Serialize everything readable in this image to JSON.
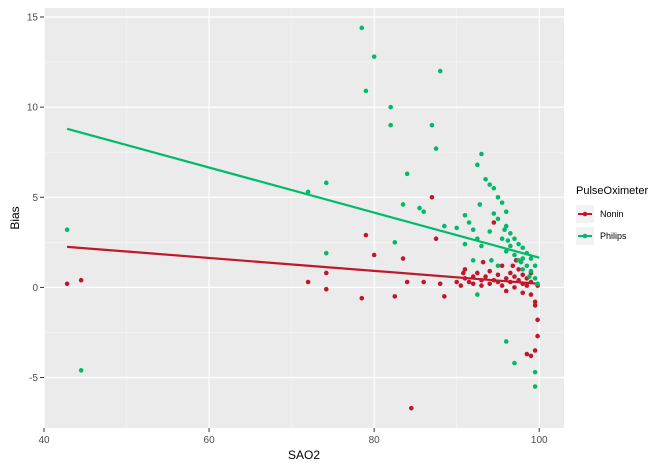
{
  "chart_data": {
    "type": "scatter",
    "xlabel": "SAO2",
    "ylabel": "Bias",
    "xlim": [
      40,
      103
    ],
    "ylim": [
      -7.8,
      15.5
    ],
    "x_ticks": [
      40,
      60,
      80,
      100
    ],
    "y_ticks": [
      -5,
      0,
      5,
      10,
      15
    ],
    "x_tick_labels": [
      "40",
      "60",
      "80",
      "100"
    ],
    "y_tick_labels": [
      "-5",
      "0",
      "5",
      "10",
      "15"
    ],
    "grid": true,
    "legend": {
      "title": "PulseOximeter",
      "position": "right"
    },
    "series": [
      {
        "name": "Nonin",
        "color": "#c0182b",
        "fit_line": [
          [
            42.8,
            2.25
          ],
          [
            100,
            0.2
          ]
        ],
        "points": [
          [
            42.8,
            0.2
          ],
          [
            44.5,
            0.4
          ],
          [
            72,
            0.3
          ],
          [
            74.2,
            0.8
          ],
          [
            74.2,
            -0.1
          ],
          [
            78.5,
            -0.6
          ],
          [
            79,
            2.9
          ],
          [
            80,
            1.8
          ],
          [
            82.5,
            -0.5
          ],
          [
            83.5,
            1.6
          ],
          [
            84,
            0.3
          ],
          [
            84.5,
            -6.7
          ],
          [
            86,
            0.3
          ],
          [
            87,
            5.0
          ],
          [
            87.5,
            2.7
          ],
          [
            88,
            0.2
          ],
          [
            88.5,
            -0.5
          ],
          [
            90,
            0.3
          ],
          [
            90.5,
            0.1
          ],
          [
            91,
            0.5
          ],
          [
            91,
            1.0
          ],
          [
            91.5,
            0.3
          ],
          [
            92,
            0.2
          ],
          [
            92,
            0.6
          ],
          [
            92.5,
            0.8
          ],
          [
            93,
            0.4
          ],
          [
            93,
            0.1
          ],
          [
            93.5,
            0.6
          ],
          [
            94,
            0.2
          ],
          [
            94,
            0.9
          ],
          [
            94.5,
            0.4
          ],
          [
            94.5,
            3.6
          ],
          [
            95,
            0.3
          ],
          [
            95,
            0.7
          ],
          [
            95.5,
            1.2
          ],
          [
            95.5,
            0.1
          ],
          [
            96,
            0.5
          ],
          [
            96,
            -0.2
          ],
          [
            96.5,
            0.8
          ],
          [
            96.5,
            0.3
          ],
          [
            97,
            0.6
          ],
          [
            97,
            0.0
          ],
          [
            97.5,
            0.4
          ],
          [
            97.5,
            1.0
          ],
          [
            98,
            0.2
          ],
          [
            98,
            0.7
          ],
          [
            98,
            -0.3
          ],
          [
            98.5,
            0.1
          ],
          [
            98.5,
            0.5
          ],
          [
            99,
            0.3
          ],
          [
            99,
            -0.4
          ],
          [
            99,
            0.8
          ],
          [
            99.5,
            -0.8
          ],
          [
            99.5,
            -1.0
          ],
          [
            99.8,
            -1.8
          ],
          [
            99.8,
            -2.7
          ],
          [
            99.5,
            -3.5
          ],
          [
            99,
            -3.8
          ],
          [
            98.5,
            -3.7
          ],
          [
            99.8,
            0.1
          ],
          [
            97.2,
            1.5
          ],
          [
            96.8,
            1.2
          ],
          [
            93.2,
            1.4
          ],
          [
            90.8,
            0.8
          ]
        ]
      },
      {
        "name": "Philips",
        "color": "#00ba6c",
        "fit_line": [
          [
            42.8,
            8.8
          ],
          [
            100,
            1.65
          ]
        ],
        "points": [
          [
            42.8,
            3.2
          ],
          [
            44.5,
            -4.6
          ],
          [
            72,
            5.3
          ],
          [
            74.2,
            5.8
          ],
          [
            74.2,
            1.9
          ],
          [
            78.5,
            14.4
          ],
          [
            79,
            10.9
          ],
          [
            80,
            12.8
          ],
          [
            82,
            10.0
          ],
          [
            82,
            9.0
          ],
          [
            82.5,
            2.5
          ],
          [
            83.5,
            4.6
          ],
          [
            84,
            6.3
          ],
          [
            85.5,
            4.4
          ],
          [
            86,
            4.2
          ],
          [
            87,
            9.0
          ],
          [
            87.5,
            7.7
          ],
          [
            88,
            12.0
          ],
          [
            88.5,
            3.4
          ],
          [
            90,
            3.3
          ],
          [
            91,
            4.0
          ],
          [
            91,
            2.4
          ],
          [
            91.5,
            3.6
          ],
          [
            92,
            3.2
          ],
          [
            92,
            1.5
          ],
          [
            92.5,
            6.8
          ],
          [
            92.5,
            2.7
          ],
          [
            93,
            7.4
          ],
          [
            93,
            2.3
          ],
          [
            93.5,
            6.0
          ],
          [
            94,
            5.7
          ],
          [
            94,
            3.1
          ],
          [
            94.5,
            4.1
          ],
          [
            94.5,
            5.5
          ],
          [
            95,
            1.2
          ],
          [
            95,
            3.8
          ],
          [
            95,
            5.0
          ],
          [
            95.5,
            4.7
          ],
          [
            95.5,
            2.7
          ],
          [
            96,
            4.2
          ],
          [
            96,
            3.4
          ],
          [
            96,
            2.0
          ],
          [
            96.5,
            3.0
          ],
          [
            96.5,
            2.3
          ],
          [
            97,
            2.7
          ],
          [
            97,
            1.8
          ],
          [
            97.5,
            2.4
          ],
          [
            97.5,
            1.5
          ],
          [
            98,
            2.2
          ],
          [
            98,
            1.6
          ],
          [
            98,
            1.0
          ],
          [
            98.5,
            1.9
          ],
          [
            98.5,
            1.2
          ],
          [
            99,
            1.6
          ],
          [
            99,
            0.9
          ],
          [
            99.5,
            1.2
          ],
          [
            99.5,
            0.5
          ],
          [
            99.8,
            0.2
          ],
          [
            92.5,
            -0.4
          ],
          [
            96,
            -3.0
          ],
          [
            97,
            -4.2
          ],
          [
            99.5,
            -4.7
          ],
          [
            99.5,
            -5.5
          ],
          [
            92.8,
            4.6
          ],
          [
            94.2,
            1.5
          ],
          [
            97.8,
            1.4
          ],
          [
            98.8,
            0.6
          ],
          [
            96.2,
            2.6
          ],
          [
            95.8,
            3.2
          ]
        ]
      }
    ]
  }
}
